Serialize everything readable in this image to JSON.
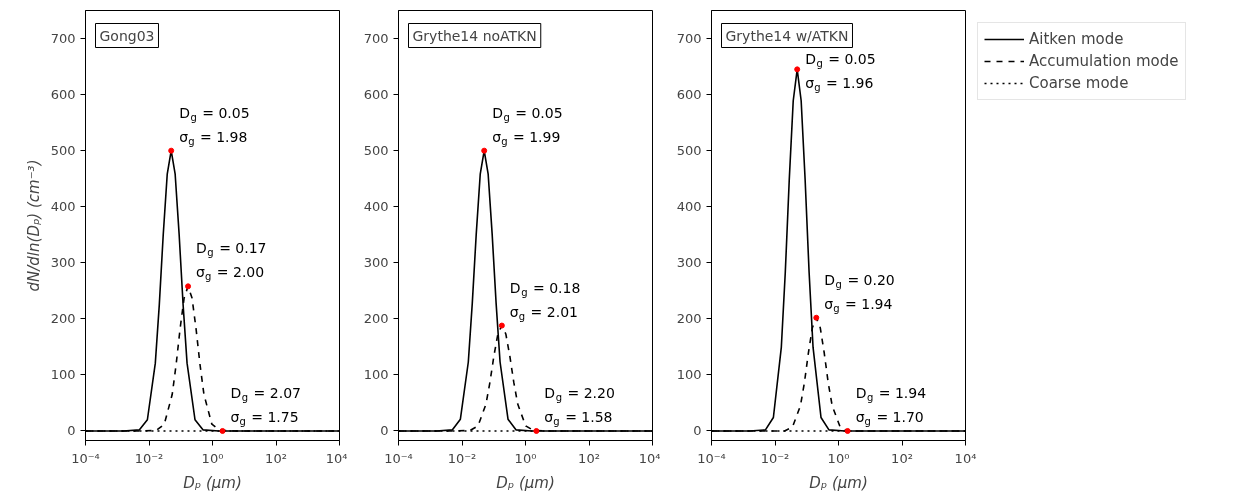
{
  "chart_data": [
    {
      "type": "line",
      "title": "Gong03",
      "xlabel": "Dₚ (µm)",
      "ylabel": "dN/dln(Dₚ) (cm⁻³)",
      "log": "x",
      "grid": false,
      "legend": false,
      "xlim": [
        0.0001,
        10000
      ],
      "ylim": [
        -17,
        750
      ],
      "xticks": [
        {
          "value": 0.0001,
          "label": "10⁻⁴"
        },
        {
          "value": 0.01,
          "label": "10⁻²"
        },
        {
          "value": 1,
          "label": "10⁰"
        },
        {
          "value": 100,
          "label": "10²"
        },
        {
          "value": 10000,
          "label": "10⁴"
        }
      ],
      "yticks": [
        0,
        100,
        200,
        300,
        400,
        500,
        600,
        700
      ],
      "series": [
        {
          "color": "#000000",
          "line_style": "solid",
          "x": [
            0.0001,
            0.001581,
            0.005,
            0.008891,
            0.01581,
            0.02109,
            0.02812,
            0.0375,
            0.05,
            0.06668,
            0.08891,
            0.1186,
            0.1581,
            0.2812,
            0.5,
            1.581,
            10000
          ],
          "values": [
            0,
            0,
            2,
            20,
            121,
            225,
            351,
            458,
            500,
            458,
            351,
            225,
            121,
            20,
            2,
            0,
            0
          ]
        },
        {
          "color": "#000000",
          "line_style": "dashed",
          "x": [
            0.0001,
            0.005376,
            0.017,
            0.03023,
            0.05376,
            0.07169,
            0.09559,
            0.1275,
            0.17,
            0.2267,
            0.3023,
            0.4031,
            0.5376,
            0.956,
            1.7,
            5.376,
            10000
          ],
          "values": [
            0,
            0,
            1,
            12,
            65,
            119,
            183,
            237,
            258,
            237,
            183,
            119,
            65,
            12,
            1,
            0,
            0
          ]
        },
        {
          "color": "#000000",
          "line_style": "dotted",
          "x": [
            0.0001,
            2.07,
            10000
          ],
          "values": [
            0,
            0,
            0
          ]
        },
        {
          "type": "scatter",
          "marker": "circle",
          "color": "#ff0000",
          "x": [
            0.05,
            0.17,
            2.07
          ],
          "values": [
            500,
            258,
            0
          ]
        }
      ],
      "annotations": [
        {
          "text": "D$_{g}$ = 0.05\nσ$_{g}$ = 1.98",
          "x": 0.05,
          "y": 500
        },
        {
          "text": "D$_{g}$ = 0.17\nσ$_{g}$ = 2.00",
          "x": 0.17,
          "y": 258
        },
        {
          "text": "D$_{g}$ = 2.07\nσ$_{g}$ = 1.75",
          "x": 2.07,
          "y": 0
        }
      ]
    },
    {
      "type": "line",
      "title": "Grythe14 noATKN",
      "xlabel": "Dₚ (µm)",
      "log": "x",
      "grid": false,
      "legend": false,
      "xlim": [
        0.0001,
        10000
      ],
      "ylim": [
        -17,
        750
      ],
      "xticks": [
        {
          "value": 0.0001,
          "label": "10⁻⁴"
        },
        {
          "value": 0.01,
          "label": "10⁻²"
        },
        {
          "value": 1,
          "label": "10⁰"
        },
        {
          "value": 100,
          "label": "10²"
        },
        {
          "value": 10000,
          "label": "10⁴"
        }
      ],
      "yticks": [
        0,
        100,
        200,
        300,
        400,
        500,
        600,
        700
      ],
      "series": [
        {
          "color": "#000000",
          "line_style": "solid",
          "x": [
            0.0001,
            0.001581,
            0.005,
            0.008891,
            0.01581,
            0.02109,
            0.02812,
            0.0375,
            0.05,
            0.06668,
            0.08891,
            0.1186,
            0.1581,
            0.2812,
            0.5,
            1.581,
            10000
          ],
          "values": [
            0,
            0,
            2,
            21,
            123,
            228,
            352,
            458,
            500,
            458,
            352,
            228,
            123,
            21,
            2,
            0,
            0
          ]
        },
        {
          "color": "#000000",
          "line_style": "dashed",
          "x": [
            0.0001,
            0.005692,
            0.018,
            0.032,
            0.05692,
            0.0759,
            0.1012,
            0.135,
            0.18,
            0.24,
            0.32,
            0.4269,
            0.5692,
            1.012,
            1.8,
            5.692,
            10000
          ],
          "values": [
            0,
            0,
            1,
            9,
            48,
            87,
            134,
            173,
            188,
            173,
            134,
            87,
            48,
            9,
            1,
            0,
            0
          ]
        },
        {
          "color": "#000000",
          "line_style": "dotted",
          "x": [
            0.0001,
            2.2,
            10000
          ],
          "values": [
            0,
            0,
            0
          ]
        },
        {
          "type": "scatter",
          "marker": "circle",
          "color": "#ff0000",
          "x": [
            0.05,
            0.18,
            2.2
          ],
          "values": [
            500,
            188,
            0
          ]
        }
      ],
      "annotations": [
        {
          "text": "D$_{g}$ = 0.05\nσ$_{g}$ = 1.99",
          "x": 0.05,
          "y": 500
        },
        {
          "text": "D$_{g}$ = 0.18\nσ$_{g}$ = 2.01",
          "x": 0.18,
          "y": 188
        },
        {
          "text": "D$_{g}$ = 2.20\nσ$_{g}$ = 1.58",
          "x": 2.2,
          "y": 0
        }
      ]
    },
    {
      "type": "line",
      "title": "Grythe14 w/ATKN",
      "xlabel": "Dₚ (µm)",
      "log": "x",
      "grid": false,
      "legend": "top right",
      "xlim": [
        0.0001,
        10000
      ],
      "ylim": [
        -17,
        750
      ],
      "xticks": [
        {
          "value": 0.0001,
          "label": "10⁻⁴"
        },
        {
          "value": 0.01,
          "label": "10⁻²"
        },
        {
          "value": 1,
          "label": "10⁰"
        },
        {
          "value": 100,
          "label": "10²"
        },
        {
          "value": 10000,
          "label": "10⁴"
        }
      ],
      "yticks": [
        0,
        100,
        200,
        300,
        400,
        500,
        600,
        700
      ],
      "series": [
        {
          "name": "Aitken mode",
          "color": "#000000",
          "line_style": "solid",
          "x": [
            0.0001,
            0.001581,
            0.005,
            0.008891,
            0.01581,
            0.02109,
            0.02812,
            0.0375,
            0.05,
            0.06668,
            0.08891,
            0.1186,
            0.1581,
            0.2812,
            0.5,
            1.581,
            10000
          ],
          "values": [
            0,
            0,
            2,
            24,
            149,
            283,
            448,
            589,
            645,
            589,
            448,
            283,
            149,
            24,
            2,
            0,
            0
          ]
        },
        {
          "name": "Accumulation mode",
          "color": "#000000",
          "line_style": "dashed",
          "x": [
            0.0001,
            0.006325,
            0.02,
            0.03557,
            0.06325,
            0.08434,
            0.1125,
            0.15,
            0.2,
            0.2667,
            0.3557,
            0.4743,
            0.6325,
            1.125,
            2,
            6.325,
            10000
          ],
          "values": [
            0,
            0,
            0,
            7,
            45,
            86,
            139,
            184,
            202,
            184,
            139,
            86,
            45,
            7,
            0,
            0,
            0
          ]
        },
        {
          "name": "Coarse mode",
          "color": "#000000",
          "line_style": "dotted",
          "x": [
            0.0001,
            1.94,
            10000
          ],
          "values": [
            0,
            0,
            0
          ]
        },
        {
          "type": "scatter",
          "marker": "circle",
          "color": "#ff0000",
          "x": [
            0.05,
            0.2,
            1.94
          ],
          "values": [
            645,
            202,
            0
          ]
        }
      ],
      "annotations": [
        {
          "text": "D$_{g}$ = 0.05\nσ$_{g}$ = 1.96",
          "x": 0.05,
          "y": 645
        },
        {
          "text": "D$_{g}$ = 0.20\nσ$_{g}$ = 1.94",
          "x": 0.2,
          "y": 202
        },
        {
          "text": "D$_{g}$ = 1.94\nσ$_{g}$ = 1.70",
          "x": 1.94,
          "y": 0
        }
      ]
    }
  ]
}
